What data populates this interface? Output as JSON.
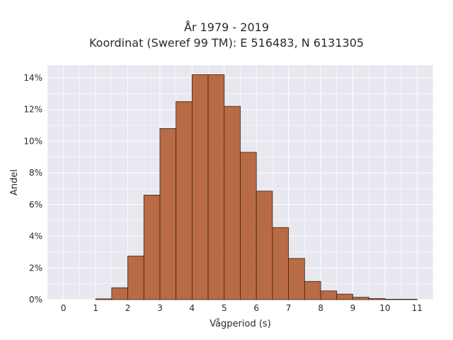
{
  "chart_data": {
    "type": "bar",
    "title": "År 1979 - 2019",
    "subtitle": "Koordinat (Sweref 99 TM): E 516483, N 6131305",
    "xlabel": "Vågperiod (s)",
    "ylabel": "Andel",
    "xlim": [
      -0.5,
      11.5
    ],
    "ylim": [
      0,
      14.8
    ],
    "x_ticks": [
      "0",
      "1",
      "2",
      "3",
      "4",
      "5",
      "6",
      "7",
      "8",
      "9",
      "10",
      "11"
    ],
    "y_ticks": [
      {
        "value": 0,
        "label": "0%"
      },
      {
        "value": 2,
        "label": "2%"
      },
      {
        "value": 4,
        "label": "4%"
      },
      {
        "value": 6,
        "label": "6%"
      },
      {
        "value": 8,
        "label": "8%"
      },
      {
        "value": 10,
        "label": "10%"
      },
      {
        "value": 12,
        "label": "12%"
      },
      {
        "value": 14,
        "label": "14%"
      }
    ],
    "bin_width": 0.5,
    "bins": [
      {
        "x0": 1.0,
        "value": 0.05
      },
      {
        "x0": 1.5,
        "value": 0.75
      },
      {
        "x0": 2.0,
        "value": 2.75
      },
      {
        "x0": 2.5,
        "value": 6.6
      },
      {
        "x0": 3.0,
        "value": 10.8
      },
      {
        "x0": 3.5,
        "value": 12.5
      },
      {
        "x0": 4.0,
        "value": 14.2
      },
      {
        "x0": 4.5,
        "value": 14.2
      },
      {
        "x0": 5.0,
        "value": 12.2
      },
      {
        "x0": 5.5,
        "value": 9.3
      },
      {
        "x0": 6.0,
        "value": 6.85
      },
      {
        "x0": 6.5,
        "value": 4.55
      },
      {
        "x0": 7.0,
        "value": 2.6
      },
      {
        "x0": 7.5,
        "value": 1.15
      },
      {
        "x0": 8.0,
        "value": 0.55
      },
      {
        "x0": 8.5,
        "value": 0.35
      },
      {
        "x0": 9.0,
        "value": 0.15
      },
      {
        "x0": 9.5,
        "value": 0.07
      },
      {
        "x0": 10.0,
        "value": 0.02
      },
      {
        "x0": 10.5,
        "value": 0.01
      }
    ],
    "grid": true,
    "colors": {
      "bar_fill": "#b5643a",
      "bar_stroke": "#3d2416",
      "plot_bg": "#e8e8f0",
      "grid": "#ffffff"
    }
  }
}
